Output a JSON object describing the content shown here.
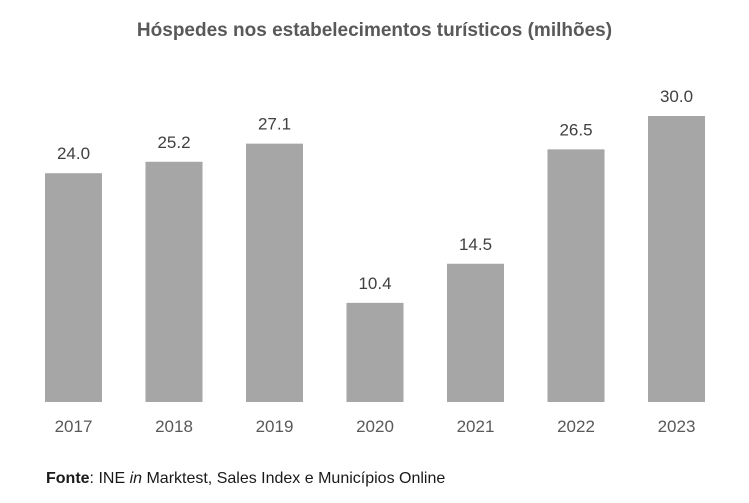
{
  "chart_data": {
    "type": "bar",
    "title": "Hóspedes nos estabelecimentos turísticos (milhões)",
    "categories": [
      "2017",
      "2018",
      "2019",
      "2020",
      "2021",
      "2022",
      "2023"
    ],
    "values": [
      24.0,
      25.2,
      27.1,
      10.4,
      14.5,
      26.5,
      30.0
    ],
    "data_labels": [
      "24.0",
      "25.2",
      "27.1",
      "10.4",
      "14.5",
      "26.5",
      "30.0"
    ],
    "xlabel": "",
    "ylabel": "",
    "ylim": [
      0,
      30
    ],
    "grid": false,
    "legend": "none",
    "bar_color": "#a6a6a6"
  },
  "source": {
    "label": "Fonte",
    "separator": ": INE ",
    "in_word": "in",
    "rest": " Marktest, Sales Index e Municípios Online"
  }
}
